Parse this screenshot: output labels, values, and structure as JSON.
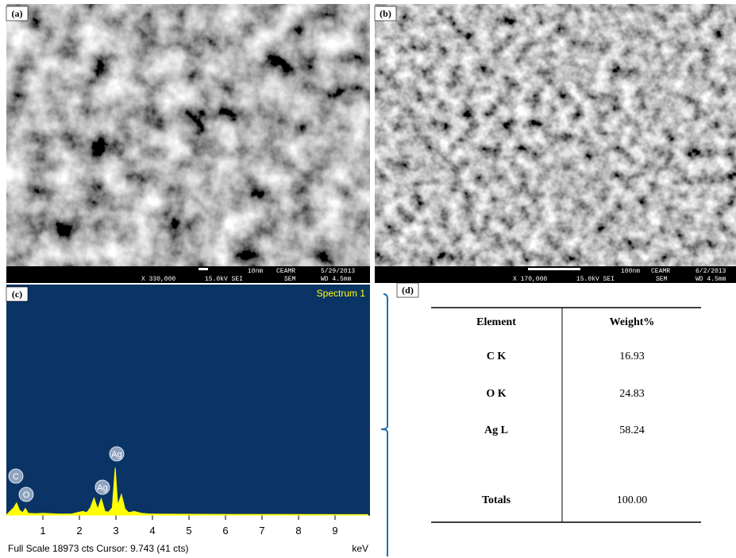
{
  "panels": [
    {
      "label": "(a)",
      "scale_bar": "10nm",
      "lab": "CEAMR",
      "date": "5/29/2013",
      "magnification": "X 330,000",
      "voltage": "15.0kV SEI",
      "mode": "SEM",
      "wd": "WD 4.5mm"
    },
    {
      "label": "(b)",
      "scale_bar": "100nm",
      "lab": "CEAMR",
      "date": "6/2/2013",
      "magnification": "X 170,000",
      "voltage": "15.0kV SEI",
      "mode": "SEM",
      "wd": "WD 4.5mm"
    }
  ],
  "panel_c": {
    "label": "(c)",
    "title": "Spectrum 1",
    "xlim": [
      0,
      10
    ],
    "xticks": [
      1,
      2,
      3,
      4,
      5,
      6,
      7,
      8,
      9
    ],
    "ylim": [
      0,
      18973
    ],
    "unit": "keV",
    "footer": "Full Scale 18973 cts Cursor: 9.743 (41 cts)",
    "peak_labels": [
      "C",
      "O",
      "Ag",
      "Ag"
    ],
    "spectrum": {
      "x": [
        0.1,
        0.2,
        0.28,
        0.36,
        0.45,
        0.52,
        0.6,
        0.8,
        1.0,
        1.5,
        1.8,
        2.0,
        2.1,
        2.2,
        2.3,
        2.4,
        2.5,
        2.6,
        2.7,
        2.8,
        2.9,
        2.98,
        3.05,
        3.15,
        3.25,
        3.35,
        3.5,
        3.7,
        3.9,
        4.2,
        6.0,
        9.9
      ],
      "values": [
        300,
        600,
        1000,
        400,
        200,
        550,
        150,
        120,
        150,
        80,
        100,
        250,
        300,
        200,
        600,
        1400,
        500,
        1350,
        300,
        250,
        600,
        3900,
        800,
        1700,
        500,
        200,
        300,
        150,
        100,
        80,
        60,
        40
      ]
    }
  },
  "panel_d": {
    "label": "(d)",
    "table": {
      "header": [
        "Element",
        "Weight%"
      ],
      "rows": [
        [
          "C K",
          "16.93"
        ],
        [
          "O K",
          "24.83"
        ],
        [
          "Ag L",
          "58.24"
        ],
        [
          "Totals",
          "100.00"
        ]
      ]
    }
  }
}
